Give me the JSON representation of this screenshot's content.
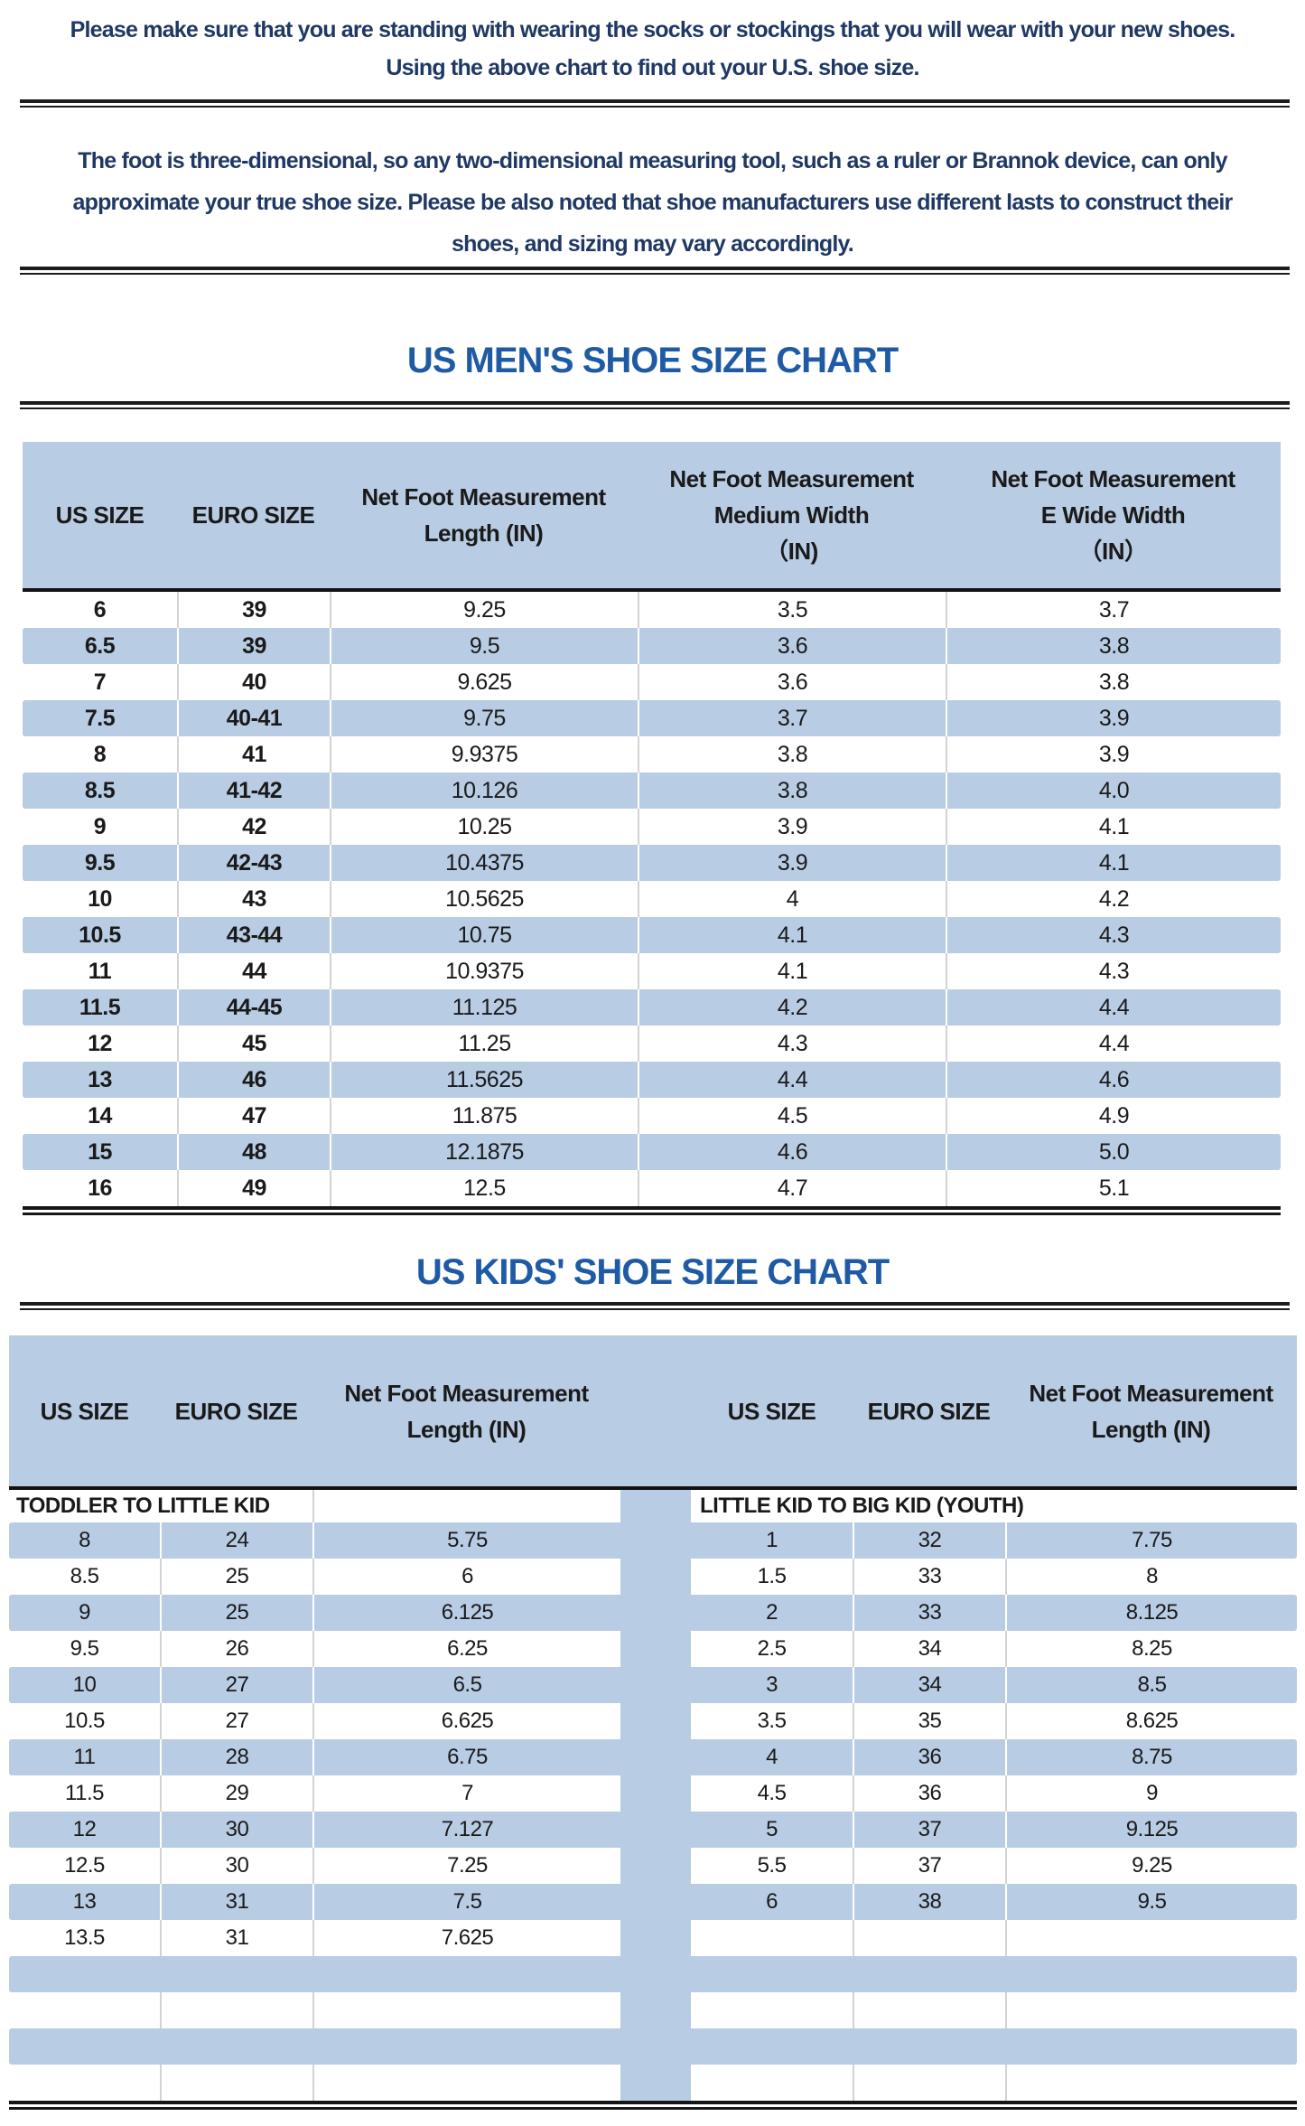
{
  "colors": {
    "table_fill_blue": "#b8cce4",
    "note_text": "#1f3864",
    "title_text": "#1f5ba5",
    "divider_line": "#1c1c1c",
    "cell_text": "#1a1a1a"
  },
  "notes": {
    "note1_lines": [
      "Please make sure that you are standing with wearing the socks or stockings that you will wear with your new shoes.",
      "Using the above chart to find out your U.S. shoe size."
    ],
    "note2_lines": [
      "The foot is three-dimensional, so any two-dimensional measuring tool, such as a ruler or Brannok device, can only",
      "approximate your true shoe size. Please be also noted that shoe manufacturers use different lasts to construct their",
      "shoes, and sizing may vary accordingly."
    ]
  },
  "mens_chart": {
    "title": "US MEN'S SHOE SIZE CHART",
    "headers": [
      [
        "US SIZE"
      ],
      [
        "EURO SIZE"
      ],
      [
        "Net Foot Measurement",
        "Length (IN)"
      ],
      [
        "Net Foot Measurement",
        "Medium Width",
        "（IN)"
      ],
      [
        "Net Foot Measurement",
        "E Wide Width",
        "（IN）"
      ]
    ],
    "rows": [
      [
        "6",
        "39",
        "9.25",
        "3.5",
        "3.7"
      ],
      [
        "6.5",
        "39",
        "9.5",
        "3.6",
        "3.8"
      ],
      [
        "7",
        "40",
        "9.625",
        "3.6",
        "3.8"
      ],
      [
        "7.5",
        "40-41",
        "9.75",
        "3.7",
        "3.9"
      ],
      [
        "8",
        "41",
        "9.9375",
        "3.8",
        "3.9"
      ],
      [
        "8.5",
        "41-42",
        "10.126",
        "3.8",
        "4.0"
      ],
      [
        "9",
        "42",
        "10.25",
        "3.9",
        "4.1"
      ],
      [
        "9.5",
        "42-43",
        "10.4375",
        "3.9",
        "4.1"
      ],
      [
        "10",
        "43",
        "10.5625",
        "4",
        "4.2"
      ],
      [
        "10.5",
        "43-44",
        "10.75",
        "4.1",
        "4.3"
      ],
      [
        "11",
        "44",
        "10.9375",
        "4.1",
        "4.3"
      ],
      [
        "11.5",
        "44-45",
        "11.125",
        "4.2",
        "4.4"
      ],
      [
        "12",
        "45",
        "11.25",
        "4.3",
        "4.4"
      ],
      [
        "13",
        "46",
        "11.5625",
        "4.4",
        "4.6"
      ],
      [
        "14",
        "47",
        "11.875",
        "4.5",
        "4.9"
      ],
      [
        "15",
        "48",
        "12.1875",
        "4.6",
        "5.0"
      ],
      [
        "16",
        "49",
        "12.5",
        "4.7",
        "5.1"
      ]
    ]
  },
  "kids_chart": {
    "title": "US KIDS' SHOE SIZE CHART",
    "headers": [
      [
        "US SIZE"
      ],
      [
        "EURO SIZE"
      ],
      [
        "Net Foot Measurement",
        "Length (IN)"
      ],
      [
        "US SIZE"
      ],
      [
        "EURO SIZE"
      ],
      [
        "Net Foot Measurement",
        "Length (IN)"
      ]
    ],
    "left_section_label": "TODDLER TO LITTLE KID",
    "right_section_label": "LITTLE KID TO BIG KID (YOUTH)",
    "left_rows": [
      [
        "8",
        "24",
        "5.75"
      ],
      [
        "8.5",
        "25",
        "6"
      ],
      [
        "9",
        "25",
        "6.125"
      ],
      [
        "9.5",
        "26",
        "6.25"
      ],
      [
        "10",
        "27",
        "6.5"
      ],
      [
        "10.5",
        "27",
        "6.625"
      ],
      [
        "11",
        "28",
        "6.75"
      ],
      [
        "11.5",
        "29",
        "7"
      ],
      [
        "12",
        "30",
        "7.127"
      ],
      [
        "12.5",
        "30",
        "7.25"
      ],
      [
        "13",
        "31",
        "7.5"
      ],
      [
        "13.5",
        "31",
        "7.625"
      ]
    ],
    "right_rows": [
      [
        "1",
        "32",
        "7.75"
      ],
      [
        "1.5",
        "33",
        "8"
      ],
      [
        "2",
        "33",
        "8.125"
      ],
      [
        "2.5",
        "34",
        "8.25"
      ],
      [
        "3",
        "34",
        "8.5"
      ],
      [
        "3.5",
        "35",
        "8.625"
      ],
      [
        "4",
        "36",
        "8.75"
      ],
      [
        "4.5",
        "36",
        "9"
      ],
      [
        "5",
        "37",
        "9.125"
      ],
      [
        "5.5",
        "37",
        "9.25"
      ],
      [
        "6",
        "38",
        "9.5"
      ],
      [
        "",
        "",
        ""
      ]
    ],
    "trailing_empty_rows": 4
  }
}
